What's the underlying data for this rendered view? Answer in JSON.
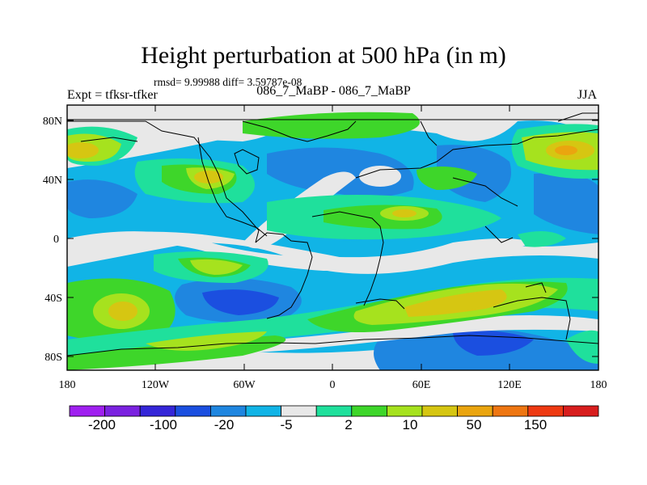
{
  "header": {
    "title": "Height perturbation at 500 hPa (in m)",
    "stats": "rmsd= 9.99988 diff= 3.59787e-08",
    "left_label": "Expt = tfksr-tfker",
    "center_label": "086_7_MaBP - 086_7_MaBP",
    "right_label": "JJA"
  },
  "map": {
    "lat_ticks": [
      "80N",
      "40N",
      "0",
      "40S",
      "80S"
    ],
    "lon_ticks": [
      "180",
      "120W",
      "60W",
      "0",
      "60E",
      "120E",
      "180"
    ]
  },
  "colorbar": {
    "colors": [
      "#a020f0",
      "#7b22e0",
      "#3526d8",
      "#1b4fe0",
      "#1f86e0",
      "#11b4e6",
      "#e8e8e8",
      "#1fe09c",
      "#3ed62a",
      "#a6e21e",
      "#d6c612",
      "#eaa50f",
      "#ee7612",
      "#ee3a12",
      "#d81e1e"
    ],
    "labels": [
      "-200",
      "-100",
      "-20",
      "-5",
      "2",
      "10",
      "50",
      "150"
    ]
  },
  "palette": {
    "background": "#e8e8e8",
    "lightblue": "#11b4e6",
    "blue": "#1f86e0",
    "darkblue": "#1b4fe0",
    "teal": "#1fe09c",
    "green": "#3ed62a",
    "lime": "#a6e21e",
    "yellow": "#d6c612",
    "orange": "#eaa50f"
  }
}
